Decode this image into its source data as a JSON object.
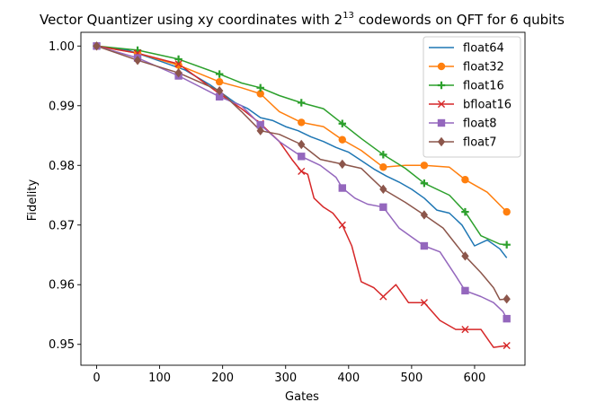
{
  "chart_data": {
    "type": "line",
    "title_main": "Vector Quantizer using xy coordinates with 2",
    "title_sup": "13",
    "title_rest": " codewords on QFT for 6 qubits",
    "xlabel": "Gates",
    "ylabel": "Fidelity",
    "xlim": [
      -25,
      680
    ],
    "ylim": [
      0.9465,
      1.0023
    ],
    "xticks": [
      0,
      100,
      200,
      300,
      400,
      500,
      600
    ],
    "xtick_labels": [
      "0",
      "100",
      "200",
      "300",
      "400",
      "500",
      "600"
    ],
    "yticks": [
      0.95,
      0.96,
      0.97,
      0.98,
      0.99,
      1.0
    ],
    "ytick_labels": [
      "0.95",
      "0.96",
      "0.97",
      "0.98",
      "0.99",
      "1.00"
    ],
    "legend_position": "top-right",
    "series": [
      {
        "name": "float64",
        "color": "#1f77b4",
        "marker": "none",
        "x": [
          0,
          50,
          100,
          140,
          180,
          200,
          220,
          240,
          260,
          280,
          300,
          320,
          340,
          360,
          380,
          400,
          420,
          440,
          460,
          480,
          500,
          520,
          540,
          560,
          580,
          600,
          620,
          640,
          651
        ],
        "y": [
          1.0,
          0.9993,
          0.9975,
          0.996,
          0.9935,
          0.992,
          0.9905,
          0.9895,
          0.988,
          0.9875,
          0.9865,
          0.9858,
          0.9848,
          0.984,
          0.983,
          0.9822,
          0.9808,
          0.9794,
          0.9782,
          0.9772,
          0.976,
          0.9745,
          0.9725,
          0.972,
          0.97,
          0.9665,
          0.9675,
          0.966,
          0.9645
        ],
        "marker_x": [],
        "marker_y": []
      },
      {
        "name": "float32",
        "color": "#ff7f0e",
        "marker": "circle",
        "x": [
          0,
          65,
          130,
          195,
          230,
          260,
          290,
          325,
          360,
          390,
          420,
          455,
          490,
          520,
          560,
          585,
          620,
          651
        ],
        "y": [
          1.0,
          0.9988,
          0.9968,
          0.994,
          0.993,
          0.992,
          0.989,
          0.9872,
          0.9865,
          0.9843,
          0.9825,
          0.9797,
          0.98,
          0.98,
          0.9797,
          0.9776,
          0.9755,
          0.9722
        ],
        "marker_x": [
          0,
          65,
          130,
          195,
          260,
          325,
          390,
          455,
          520,
          585,
          651
        ],
        "marker_y": [
          1.0,
          0.9988,
          0.9968,
          0.994,
          0.992,
          0.9872,
          0.9843,
          0.9797,
          0.98,
          0.9776,
          0.9722
        ]
      },
      {
        "name": "float16",
        "color": "#2ca02c",
        "marker": "plus",
        "x": [
          0,
          65,
          130,
          195,
          230,
          260,
          290,
          325,
          360,
          390,
          420,
          455,
          490,
          520,
          560,
          585,
          610,
          640,
          651
        ],
        "y": [
          1.0,
          0.9993,
          0.9978,
          0.9953,
          0.9938,
          0.993,
          0.9917,
          0.9905,
          0.9895,
          0.987,
          0.9845,
          0.9818,
          0.9795,
          0.977,
          0.975,
          0.9722,
          0.9682,
          0.9668,
          0.9667
        ],
        "marker_x": [
          0,
          65,
          130,
          195,
          260,
          325,
          390,
          455,
          520,
          585,
          651
        ],
        "marker_y": [
          1.0,
          0.9993,
          0.9978,
          0.9953,
          0.993,
          0.9905,
          0.987,
          0.9818,
          0.977,
          0.9722,
          0.9667
        ]
      },
      {
        "name": "bfloat16",
        "color": "#d62728",
        "marker": "x",
        "x": [
          0,
          65,
          130,
          195,
          230,
          260,
          290,
          310,
          325,
          335,
          345,
          360,
          375,
          390,
          405,
          420,
          440,
          455,
          475,
          495,
          520,
          545,
          570,
          585,
          610,
          630,
          651
        ],
        "y": [
          1.0,
          0.9988,
          0.997,
          0.992,
          0.9895,
          0.987,
          0.984,
          0.981,
          0.979,
          0.9785,
          0.9745,
          0.973,
          0.972,
          0.97,
          0.9665,
          0.9605,
          0.9595,
          0.958,
          0.96,
          0.957,
          0.957,
          0.954,
          0.9525,
          0.9525,
          0.9525,
          0.9495,
          0.9498
        ],
        "marker_x": [
          0,
          65,
          130,
          195,
          260,
          325,
          390,
          455,
          520,
          585,
          651
        ],
        "marker_y": [
          1.0,
          0.9988,
          0.997,
          0.992,
          0.987,
          0.979,
          0.97,
          0.958,
          0.957,
          0.9525,
          0.9498
        ]
      },
      {
        "name": "float8",
        "color": "#9467bd",
        "marker": "square",
        "x": [
          0,
          65,
          130,
          195,
          230,
          260,
          290,
          325,
          355,
          380,
          390,
          410,
          430,
          455,
          480,
          500,
          520,
          545,
          570,
          585,
          610,
          630,
          645,
          651
        ],
        "y": [
          1.0,
          0.998,
          0.995,
          0.9915,
          0.99,
          0.9868,
          0.984,
          0.9815,
          0.98,
          0.978,
          0.9762,
          0.9745,
          0.9735,
          0.973,
          0.9695,
          0.968,
          0.9665,
          0.9655,
          0.9615,
          0.959,
          0.958,
          0.957,
          0.9555,
          0.9543
        ],
        "marker_x": [
          0,
          65,
          130,
          195,
          260,
          325,
          390,
          455,
          520,
          585,
          651
        ],
        "marker_y": [
          1.0,
          0.998,
          0.995,
          0.9915,
          0.9868,
          0.9815,
          0.9762,
          0.973,
          0.9665,
          0.959,
          0.9543
        ]
      },
      {
        "name": "float7",
        "color": "#8c564b",
        "marker": "diamond",
        "x": [
          0,
          65,
          130,
          195,
          230,
          260,
          290,
          325,
          355,
          390,
          420,
          455,
          490,
          520,
          550,
          585,
          610,
          630,
          640,
          651
        ],
        "y": [
          1.0,
          0.9976,
          0.9955,
          0.9925,
          0.989,
          0.9858,
          0.9852,
          0.9835,
          0.981,
          0.9802,
          0.9795,
          0.976,
          0.9738,
          0.9717,
          0.9695,
          0.9648,
          0.962,
          0.9595,
          0.9575,
          0.9576
        ],
        "marker_x": [
          0,
          65,
          130,
          195,
          260,
          325,
          390,
          455,
          520,
          585,
          651
        ],
        "marker_y": [
          1.0,
          0.9976,
          0.9955,
          0.9925,
          0.9858,
          0.9835,
          0.9802,
          0.976,
          0.9717,
          0.9648,
          0.9576
        ]
      }
    ]
  }
}
